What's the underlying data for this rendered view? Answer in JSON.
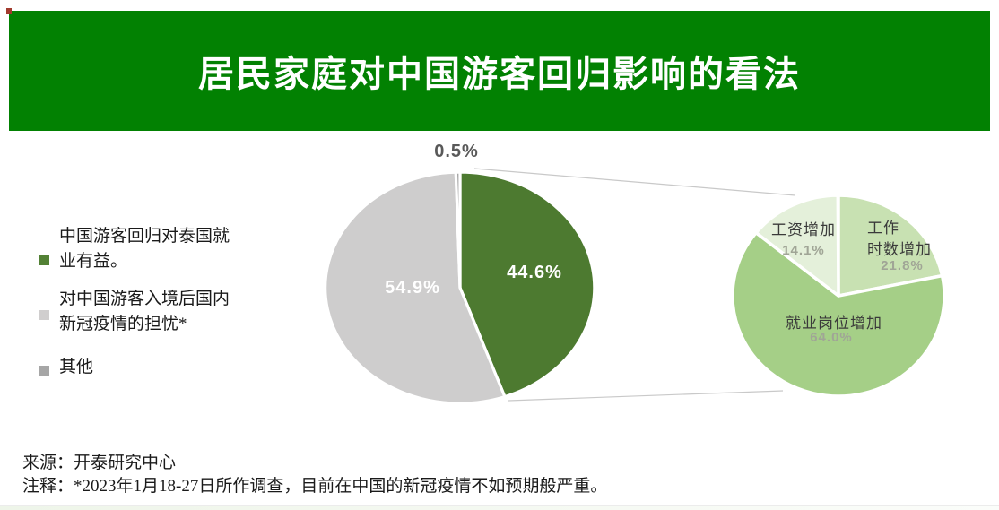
{
  "header": {
    "title": "居民家庭对中国游客回归影响的看法",
    "banner_color": "#028102"
  },
  "legend": {
    "items": [
      {
        "label": "中国游客回归对泰国就业有益。",
        "color": "#538135"
      },
      {
        "label": "对中国游客入境后国内新冠疫情的担忧*",
        "color": "#d0cece"
      },
      {
        "label": "其他",
        "color": "#a6a6a6"
      }
    ]
  },
  "chart_data": [
    {
      "type": "pie",
      "name": "overall-opinion-pie",
      "title": "居民家庭对中国游客回归影响的看法",
      "categories": [
        "中国游客回归对泰国就业有益。",
        "对中国游客入境后国内新冠疫情的担忧*",
        "其他"
      ],
      "values": [
        44.6,
        54.9,
        0.5
      ],
      "value_labels": [
        "44.6%",
        "54.9%",
        "0.5%"
      ],
      "colors": [
        "#4d7a30",
        "#cecdcd",
        "#a6a6a6"
      ],
      "start": "12-oclock, clockwise",
      "legend_position": "left"
    },
    {
      "type": "pie",
      "name": "employment-benefit-breakdown-pie",
      "categories": [
        "工作时数增加",
        "就业岗位增加",
        "工资增加"
      ],
      "values": [
        21.8,
        64.0,
        14.1
      ],
      "value_labels": [
        "21.8%",
        "64.0%",
        "14.1%"
      ],
      "colors": [
        "#c8e1b2",
        "#a5cf87",
        "#e4f0da"
      ],
      "start": "12-oclock, clockwise",
      "display": {
        "hours_line1": "工作",
        "hours_line2": "时数增加",
        "hours_pct": "21.8%",
        "jobs_name": "就业岗位增加",
        "jobs_pct": "64.0%",
        "wage_name": "工资增加",
        "wage_pct": "14.1%"
      }
    }
  ],
  "footer": {
    "source": "来源：开泰研究中心",
    "note": "注释：*2023年1月18-27日所作调查，目前在中国的新冠疫情不如预期般严重。"
  }
}
